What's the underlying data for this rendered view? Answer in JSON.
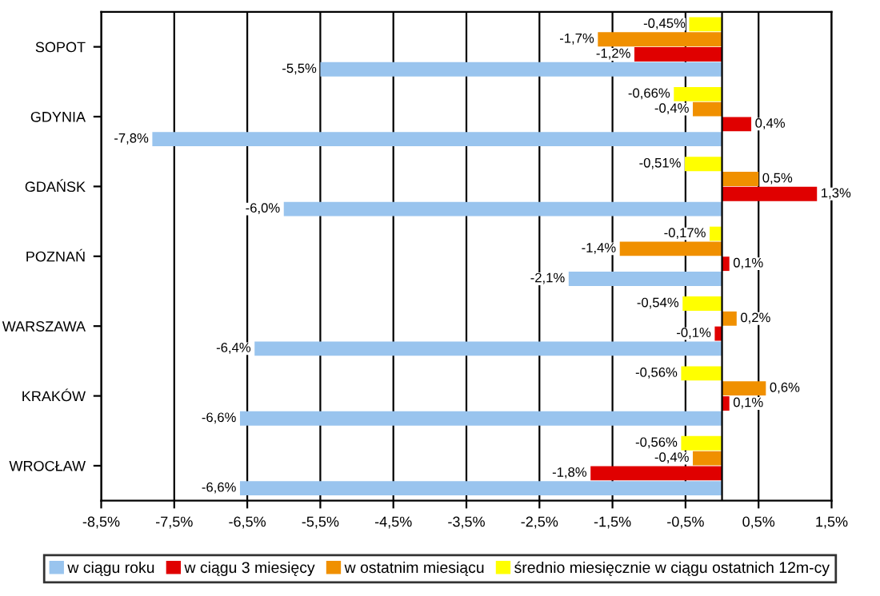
{
  "chart_data": {
    "type": "bar",
    "orientation": "horizontal",
    "categories": [
      "SOPOT",
      "GDYNIA",
      "GDAŃSK",
      "POZNAŃ",
      "WARSZAWA",
      "KRAKÓW",
      "WROCŁAW"
    ],
    "series": [
      {
        "name": "w ciągu roku",
        "color": "#99c4ee",
        "values": [
          -5.5,
          -7.8,
          -6.0,
          -2.1,
          -6.4,
          -6.6,
          -6.6
        ],
        "value_labels": [
          "-5,5%",
          "-7,8%",
          "-6,0%",
          "-2,1%",
          "-6,4%",
          "-6,6%",
          "-6,6%"
        ]
      },
      {
        "name": "w ciągu 3 miesięcy",
        "color": "#e00000",
        "values": [
          -1.2,
          0.4,
          1.3,
          0.1,
          -0.1,
          0.1,
          -1.8
        ],
        "value_labels": [
          "-1,2%",
          "0,4%",
          "1,3%",
          "0,1%",
          "-0,1%",
          "0,1%",
          "-1,8%"
        ]
      },
      {
        "name": "w ostatnim miesiącu",
        "color": "#f09000",
        "values": [
          -1.7,
          -0.4,
          0.5,
          -1.4,
          0.2,
          0.6,
          -0.4
        ],
        "value_labels": [
          "-1,7%",
          "-0,4%",
          "0,5%",
          "-1,4%",
          "0,2%",
          "0,6%",
          "-0,4%"
        ]
      },
      {
        "name": "średnio miesięcznie w ciągu ostatnich 12m-cy",
        "color": "#ffff00",
        "values": [
          -0.45,
          -0.66,
          -0.51,
          -0.17,
          -0.54,
          -0.56,
          -0.56
        ],
        "value_labels": [
          "-0,45%",
          "-0,66%",
          "-0,51%",
          "-0,17%",
          "-0,54%",
          "-0,56%",
          "-0,56%"
        ]
      }
    ],
    "xlim": [
      -8.5,
      1.5
    ],
    "xticks": [
      {
        "value": -8.5,
        "label": "-8,5%"
      },
      {
        "value": -7.5,
        "label": "-7,5%"
      },
      {
        "value": -6.5,
        "label": "-6,5%"
      },
      {
        "value": -5.5,
        "label": "-5,5%"
      },
      {
        "value": -4.5,
        "label": "-4,5%"
      },
      {
        "value": -3.5,
        "label": "-3,5%"
      },
      {
        "value": -2.5,
        "label": "-2,5%"
      },
      {
        "value": -1.5,
        "label": "-1,5%"
      },
      {
        "value": -0.5,
        "label": "-0,5%"
      },
      {
        "value": 0.5,
        "label": "0,5%"
      },
      {
        "value": 1.5,
        "label": "1,5%"
      }
    ],
    "grid": "x",
    "legend": "bottom"
  }
}
